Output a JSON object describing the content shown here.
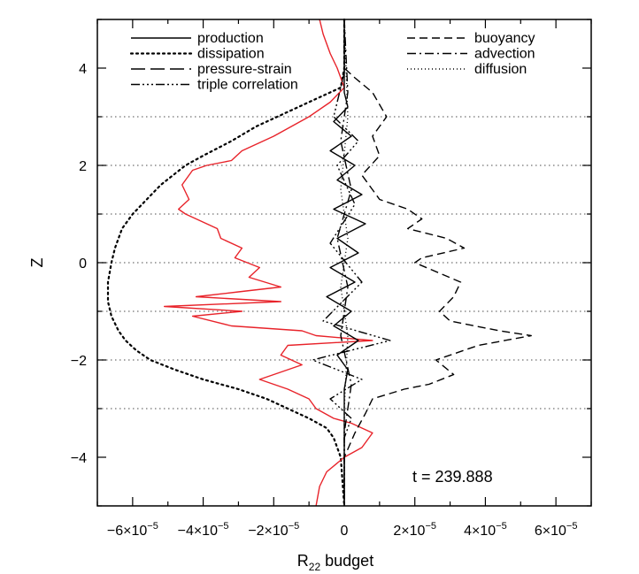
{
  "chart_data": {
    "type": "line",
    "title": "",
    "xlabel_main": "R",
    "xlabel_sub": "22",
    "xlabel_rest": " budget",
    "ylabel": "Z",
    "xlim": [
      -7e-05,
      7e-05
    ],
    "ylim": [
      -5,
      5
    ],
    "x_ticks": [
      {
        "value": -6e-05,
        "mant": "−6×10",
        "exp": "−5"
      },
      {
        "value": -4e-05,
        "mant": "−4×10",
        "exp": "−5"
      },
      {
        "value": -2e-05,
        "mant": "−2×10",
        "exp": "−5"
      },
      {
        "value": 0,
        "mant": "0",
        "exp": ""
      },
      {
        "value": 2e-05,
        "mant": "2×10",
        "exp": "−5"
      },
      {
        "value": 4e-05,
        "mant": "4×10",
        "exp": "−5"
      },
      {
        "value": 6e-05,
        "mant": "6×10",
        "exp": "−5"
      }
    ],
    "y_ticks": [
      {
        "value": -4,
        "label": "−4"
      },
      {
        "value": -2,
        "label": "−2"
      },
      {
        "value": 0,
        "label": "0"
      },
      {
        "value": 2,
        "label": "2"
      },
      {
        "value": 4,
        "label": "4"
      }
    ],
    "gridlines_y": [
      -3,
      -2,
      -1,
      0,
      1,
      2,
      3
    ],
    "annotation": "t = 239.888",
    "legend": [
      {
        "label": "production",
        "style": "solid",
        "position": "left"
      },
      {
        "label": "dissipation",
        "style": "dotted",
        "position": "left"
      },
      {
        "label": "pressure-strain",
        "style": "longdash",
        "position": "left"
      },
      {
        "label": "triple correlation",
        "style": "dashdotdotdot",
        "position": "left"
      },
      {
        "label": "buoyancy",
        "style": "dashed",
        "position": "right"
      },
      {
        "label": "advection",
        "style": "dashdot",
        "position": "right"
      },
      {
        "label": "diffusion",
        "style": "finedot",
        "position": "right"
      }
    ],
    "series": [
      {
        "name": "dissipation",
        "style": "dotted",
        "color": "#000000",
        "x": [
          0,
          0,
          -1e-06,
          -4e-06,
          -1e-05,
          -1.6e-05,
          -2.5e-05,
          -3.2e-05,
          -4e-05,
          -4.5e-05,
          -5.2e-05,
          -5.6e-05,
          -6e-05,
          -6.3e-05,
          -6.5e-05,
          -6.6e-05,
          -6.7e-05,
          -6.7e-05,
          -6.6e-05,
          -6.4e-05,
          -6.2e-05,
          -5.9e-05,
          -5.5e-05,
          -4.8e-05,
          -4e-05,
          -3e-05,
          -2.2e-05,
          -1.6e-05,
          -1e-05,
          -5e-06,
          -3e-06,
          -1e-06,
          0
        ],
        "y": [
          5.0,
          4.0,
          3.6,
          3.5,
          3.3,
          3.1,
          2.8,
          2.5,
          2.2,
          2.0,
          1.6,
          1.3,
          1.0,
          0.7,
          0.3,
          0.0,
          -0.4,
          -0.8,
          -1.1,
          -1.4,
          -1.6,
          -1.8,
          -2.0,
          -2.2,
          -2.4,
          -2.6,
          -2.8,
          -3.0,
          -3.2,
          -3.4,
          -3.6,
          -4.0,
          -5.0
        ]
      },
      {
        "name": "pressure-strain (red)",
        "style": "solid",
        "color": "#e8232a",
        "x": [
          -7e-06,
          -6e-06,
          -4e-06,
          -2e-06,
          0,
          -4e-06,
          -1e-05,
          -2e-05,
          -2.9e-05,
          -3.2e-05,
          -3.9e-05,
          -4.3e-05,
          -4.6e-05,
          -4.4e-05,
          -4.7e-05,
          -4.5e-05,
          -4.2e-05,
          -3.6e-05,
          -3.5e-05,
          -2.9e-05,
          -3.1e-05,
          -2.4e-05,
          -2.7e-05,
          -1.8e-05,
          -3e-05,
          -4.2e-05,
          -1.8e-05,
          -5.1e-05,
          -2.9e-05,
          -4.3e-05,
          -3.2e-05,
          -1.2e-05,
          -8e-06,
          8e-06,
          -1.6e-05,
          -1.8e-05,
          -1.2e-05,
          -2e-05,
          -2.4e-05,
          -1.6e-05,
          -1e-05,
          -8e-06,
          -3e-06,
          2e-06,
          8e-06,
          5e-06,
          0,
          -5e-06,
          -7e-06,
          -8e-06
        ],
        "y": [
          5.0,
          4.7,
          4.3,
          4.0,
          3.6,
          3.3,
          3.0,
          2.6,
          2.3,
          2.1,
          2.0,
          1.9,
          1.6,
          1.3,
          1.1,
          1.0,
          0.9,
          0.7,
          0.5,
          0.3,
          0.1,
          -0.1,
          -0.3,
          -0.5,
          -0.6,
          -0.7,
          -0.8,
          -0.9,
          -1.0,
          -1.1,
          -1.3,
          -1.4,
          -1.5,
          -1.6,
          -1.7,
          -1.9,
          -2.1,
          -2.3,
          -2.4,
          -2.6,
          -2.8,
          -3.0,
          -3.2,
          -3.3,
          -3.5,
          -3.8,
          -4.0,
          -4.3,
          -4.6,
          -5.0
        ]
      },
      {
        "name": "production",
        "style": "solid",
        "color": "#000000",
        "x": [
          0,
          0,
          1e-06,
          -3e-06,
          2e-06,
          -4e-06,
          3e-06,
          -2e-06,
          5e-06,
          -3e-06,
          6e-06,
          -2e-06,
          4e-06,
          -4e-06,
          3e-06,
          -5e-06,
          2e-06,
          -3e-06,
          4e-06,
          -2e-06,
          1e-06,
          0,
          0,
          0
        ],
        "y": [
          5.0,
          3.5,
          3.2,
          2.9,
          2.6,
          2.3,
          2.0,
          1.7,
          1.4,
          1.1,
          0.8,
          0.5,
          0.2,
          -0.1,
          -0.4,
          -0.7,
          -1.0,
          -1.3,
          -1.6,
          -1.9,
          -2.2,
          -2.6,
          -3.2,
          -5.0
        ]
      },
      {
        "name": "buoyancy",
        "style": "dashed",
        "color": "#000000",
        "x": [
          0,
          0,
          3e-06,
          8e-06,
          1.2e-05,
          8e-06,
          1e-05,
          5e-06,
          1e-05,
          1.8e-05,
          2.2e-05,
          1.8e-05,
          2.9e-05,
          3.4e-05,
          2.2e-05,
          2e-05,
          3.3e-05,
          3.1e-05,
          2.7e-05,
          3e-05,
          4.4e-05,
          5.3e-05,
          3.8e-05,
          2.6e-05,
          3.1e-05,
          2.4e-05,
          1.7e-05,
          8e-06,
          6e-06,
          3e-06,
          0,
          0
        ],
        "y": [
          5.0,
          4.0,
          3.8,
          3.5,
          3.0,
          2.6,
          2.2,
          1.8,
          1.3,
          1.1,
          0.9,
          0.7,
          0.5,
          0.3,
          0.1,
          0.0,
          -0.4,
          -0.7,
          -1.0,
          -1.2,
          -1.4,
          -1.5,
          -1.7,
          -2.0,
          -2.3,
          -2.5,
          -2.6,
          -2.8,
          -3.1,
          -3.5,
          -4.0,
          -5.0
        ]
      },
      {
        "name": "triple correlation",
        "style": "dashdotdotdot",
        "color": "#000000",
        "x": [
          0,
          0,
          -3e-06,
          4e-06,
          -2e-06,
          3e-06,
          -4e-06,
          5e-06,
          -6e-06,
          1.3e-05,
          -9e-06,
          5e-06,
          -4e-06,
          2e-06,
          0,
          0
        ],
        "y": [
          5.0,
          3.9,
          3.0,
          2.5,
          2.0,
          1.2,
          0.4,
          -0.4,
          -1.2,
          -1.6,
          -2.0,
          -2.4,
          -2.8,
          -3.2,
          -3.6,
          -5.0
        ]
      },
      {
        "name": "advection",
        "style": "dashdot",
        "color": "#000000",
        "x": [
          0,
          1e-06,
          -1e-06,
          2e-06,
          -2e-06,
          1e-06,
          -1e-06,
          2e-06,
          0,
          0
        ],
        "y": [
          5.0,
          3.5,
          2.5,
          1.5,
          0.5,
          -0.5,
          -1.5,
          -2.5,
          -3.5,
          -5.0
        ]
      },
      {
        "name": "diffusion",
        "style": "finedot",
        "color": "#000000",
        "x": [
          0,
          1e-06,
          -1e-06,
          1e-06,
          -1e-06,
          1e-06,
          0,
          0
        ],
        "y": [
          5.0,
          3.0,
          1.5,
          0.5,
          -0.5,
          -1.5,
          -3.0,
          -5.0
        ]
      }
    ]
  }
}
